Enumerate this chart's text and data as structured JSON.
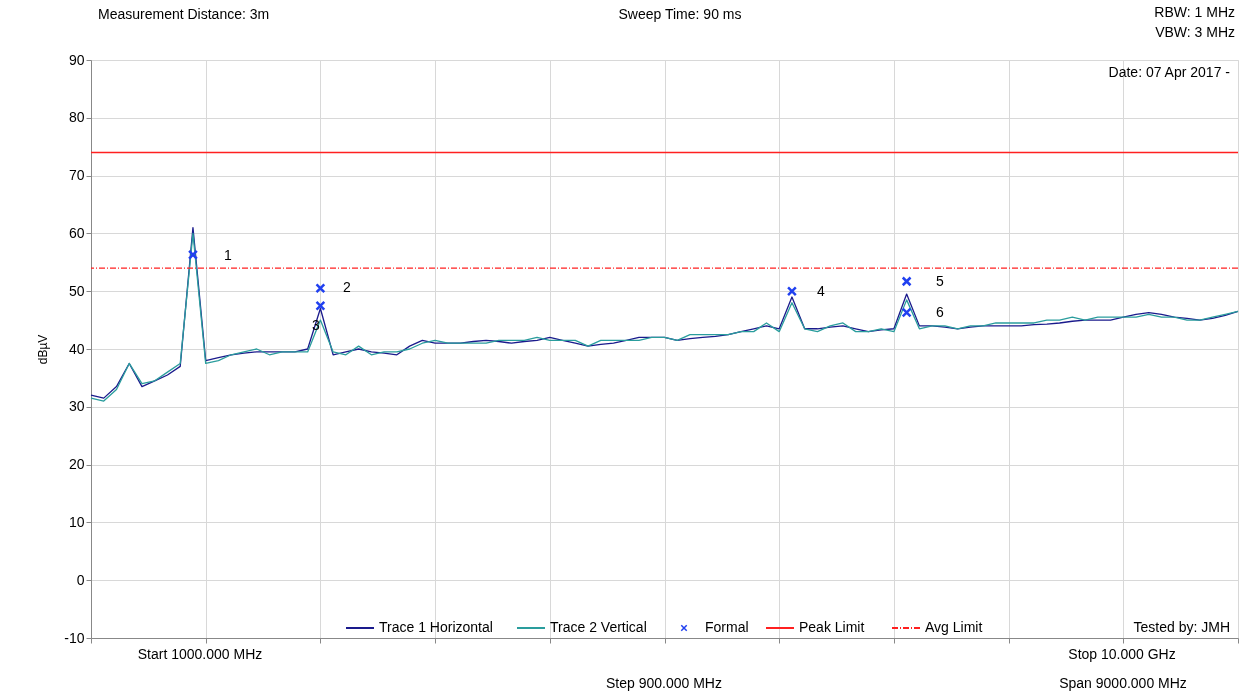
{
  "chart_data": {
    "type": "line",
    "ylabel": "dBµV",
    "categories": [
      null,
      null,
      null,
      null,
      null,
      null,
      null,
      null,
      null,
      null,
      null,
      null,
      null,
      null,
      null,
      null,
      null,
      null,
      null,
      null,
      null,
      null,
      null,
      null,
      null,
      null,
      null,
      null,
      null,
      null,
      null,
      null,
      null,
      null,
      null,
      null,
      null,
      null,
      null,
      null,
      null,
      null,
      null,
      null,
      null,
      null,
      null,
      null,
      null,
      null,
      null,
      null,
      null,
      null,
      null,
      null,
      null,
      null,
      null,
      null,
      null,
      null,
      null,
      null,
      null,
      null,
      null,
      null,
      null,
      null,
      null,
      null,
      null,
      null,
      null,
      null,
      null,
      null,
      null,
      null,
      null,
      null,
      null,
      null,
      null,
      null,
      null,
      null,
      null,
      null,
      null
    ],
    "ylim": [
      -10,
      90
    ],
    "yticks": [
      -10,
      0,
      10,
      20,
      30,
      40,
      50,
      60,
      70,
      80,
      90
    ],
    "grid": true,
    "legend": "bottom",
    "line_style": "solid",
    "series": [
      {
        "name": "Trace 1 Horizontal",
        "color": "#1a1a8c",
        "values": [
          32,
          31.5,
          33.5,
          37.5,
          33.5,
          34.5,
          35.5,
          37,
          61,
          38,
          38.5,
          39,
          39.3,
          39.5,
          39.5,
          39.5,
          39.5,
          40,
          47,
          39,
          39.5,
          40,
          39.5,
          39.3,
          39,
          40.5,
          41.5,
          41,
          41,
          41,
          41.3,
          41.5,
          41.3,
          41,
          41.3,
          41.5,
          42,
          41.5,
          41,
          40.5,
          40.8,
          41,
          41.5,
          42,
          42,
          42,
          41.5,
          41.8,
          42,
          42.2,
          42.5,
          43,
          43.5,
          44,
          43.5,
          49,
          43.5,
          43.5,
          43.8,
          44,
          43.5,
          43,
          43.3,
          43.5,
          49.5,
          44,
          44,
          43.8,
          43.5,
          43.8,
          44,
          44,
          44,
          44,
          44.2,
          44.3,
          44.5,
          44.8,
          45,
          45,
          45,
          45.5,
          46,
          46.3,
          46,
          45.5,
          45.3,
          45,
          45.3,
          45.8,
          46.5
        ]
      },
      {
        "name": "Trace 2 Vertical",
        "color": "#2a9d9d",
        "values": [
          31.5,
          31,
          33,
          37.5,
          34,
          34.5,
          36,
          37.5,
          60,
          37.5,
          38,
          39,
          39.5,
          40,
          39,
          39.5,
          39.5,
          39.5,
          45,
          39.5,
          39,
          40.5,
          39,
          39.5,
          39.5,
          40,
          41,
          41.5,
          41,
          41,
          41,
          41,
          41.5,
          41.5,
          41.5,
          42,
          41.5,
          41.5,
          41.5,
          40.5,
          41.5,
          41.5,
          41.5,
          41.5,
          42,
          42,
          41.5,
          42.5,
          42.5,
          42.5,
          42.5,
          43,
          43,
          44.5,
          43,
          48,
          43.5,
          43,
          44,
          44.5,
          43,
          43,
          43.5,
          43,
          48.5,
          43.5,
          44,
          44,
          43.5,
          44,
          44,
          44.5,
          44.5,
          44.5,
          44.5,
          45,
          45,
          45.5,
          45,
          45.5,
          45.5,
          45.5,
          45.5,
          46,
          45.5,
          45.5,
          45,
          45,
          45.5,
          46,
          46.5
        ]
      },
      {
        "name": "Formal",
        "color": "#2040f0",
        "type": "scatter",
        "marker": "cross",
        "values": [
          null,
          null,
          null,
          null,
          null,
          null,
          null,
          null,
          56.3,
          null,
          null,
          null,
          null,
          null,
          null,
          null,
          null,
          null,
          50.5,
          null,
          null,
          null,
          null,
          null,
          null,
          null,
          null,
          null,
          null,
          null,
          null,
          null,
          null,
          null,
          null,
          null,
          null,
          null,
          null,
          null,
          null,
          null,
          null,
          null,
          null,
          null,
          null,
          null,
          null,
          null,
          null,
          null,
          null,
          null,
          null,
          50,
          null,
          null,
          null,
          null,
          null,
          null,
          null,
          null,
          51.7,
          null,
          null,
          null,
          null,
          null,
          null,
          null,
          null,
          null,
          null,
          null,
          null,
          null,
          null,
          null,
          null,
          null,
          null,
          null,
          null,
          null,
          null,
          null,
          null,
          null,
          null
        ]
      },
      {
        "color": "#2040f0",
        "type": "scatter",
        "marker": "cross",
        "values": [
          null,
          null,
          null,
          null,
          null,
          null,
          null,
          null,
          null,
          null,
          null,
          null,
          null,
          null,
          null,
          null,
          null,
          null,
          47.5,
          null,
          null,
          null,
          null,
          null,
          null,
          null,
          null,
          null,
          null,
          null,
          null,
          null,
          null,
          null,
          null,
          null,
          null,
          null,
          null,
          null,
          null,
          null,
          null,
          null,
          null,
          null,
          null,
          null,
          null,
          null,
          null,
          null,
          null,
          null,
          null,
          null,
          null,
          null,
          null,
          null,
          null,
          null,
          null,
          null,
          46.3,
          null,
          null,
          null,
          null,
          null,
          null,
          null,
          null,
          null,
          null,
          null,
          null,
          null,
          null,
          null,
          null,
          null,
          null,
          null,
          null,
          null,
          null,
          null,
          null,
          null,
          null
        ]
      }
    ],
    "ref_lines": [
      {
        "axis": "y",
        "value": 74,
        "label": "Peak Limit",
        "color": "#ff2020",
        "line_style": "solid"
      },
      {
        "axis": "y",
        "value": 54,
        "label": "Avg Limit",
        "color": "#ff2020",
        "line_style": "dashdot"
      }
    ],
    "annotations": [
      "Measurement Distance: 3m",
      "Sweep Time: 90 ms",
      "RBW: 1 MHz",
      "VBW: 3 MHz",
      "Date: 07 Apr 2017 -",
      "Tested by: JMH",
      "Start 1000.000 MHz",
      "Step 900.000 MHz",
      "Stop 10.000 GHz",
      "Span 9000.000 MHz",
      "1",
      "2",
      "3",
      "4",
      "5",
      "6"
    ]
  }
}
